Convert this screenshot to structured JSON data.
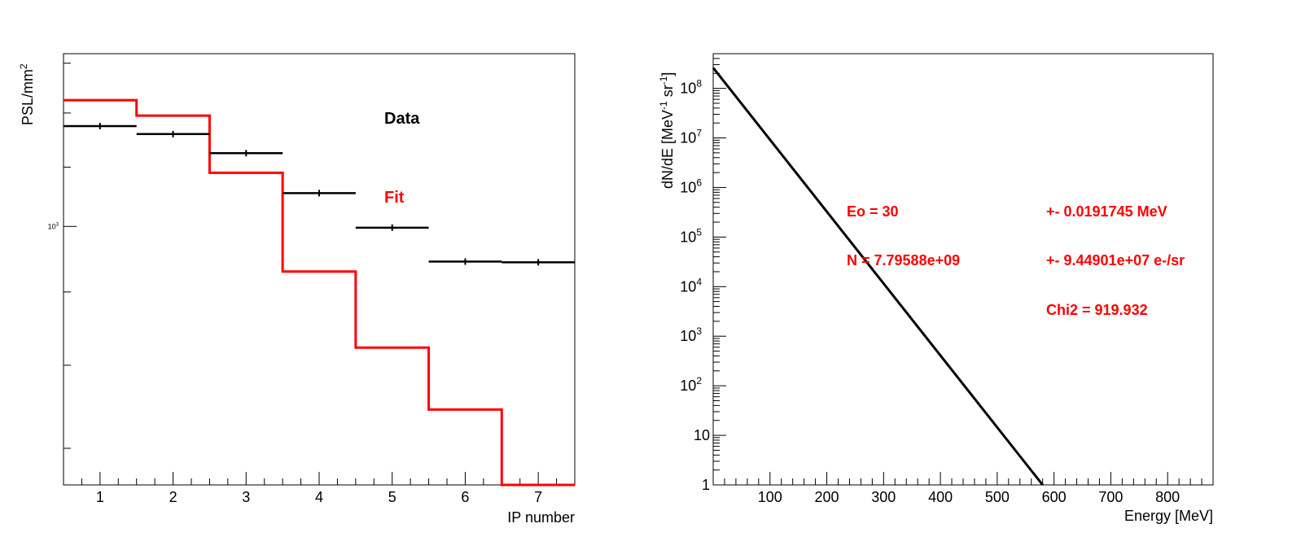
{
  "chart_data": [
    {
      "type": "step",
      "ylabel_base": "PSL/mm",
      "ylabel_sup": "2",
      "xlabel": "IP number",
      "x_ticks": [
        1,
        2,
        3,
        4,
        5,
        6,
        7
      ],
      "xlim": [
        0.5,
        7.5
      ],
      "y_scale": "log",
      "ylim": [
        660,
        1320
      ],
      "y_tick_label": "10",
      "y_tick_label_sup": "3",
      "y_tick_value": 1000,
      "y_minor_ticks": [
        700,
        800,
        900,
        1000,
        1100,
        1200,
        1300
      ],
      "legend": [
        {
          "label": "Data",
          "color": "#000000"
        },
        {
          "label": "Fit",
          "color": "#ff0000"
        }
      ],
      "series": [
        {
          "name": "Data",
          "color": "#000000",
          "x": [
            1,
            2,
            3,
            4,
            5,
            6,
            7
          ],
          "y": [
            1175,
            1160,
            1125,
            1055,
            998,
            945,
            944
          ]
        },
        {
          "name": "Fit",
          "color": "#ff0000",
          "x": [
            1,
            2,
            3,
            4,
            5,
            6,
            7
          ],
          "y": [
            1225,
            1195,
            1090,
            930,
            823,
            745,
            660
          ]
        }
      ]
    },
    {
      "type": "line",
      "ylabel": "dN/dE [MeV",
      "ylabel_sup1": "-1",
      "ylabel_mid": " sr",
      "ylabel_sup2": "-1",
      "ylabel_end": "]",
      "xlabel": "Energy [MeV]",
      "xlim": [
        0,
        880
      ],
      "x_ticks": [
        100,
        200,
        300,
        400,
        500,
        600,
        700,
        800
      ],
      "y_scale": "log",
      "ylim": [
        1,
        500000000
      ],
      "y_ticks": [
        {
          "base": "1",
          "exp": "",
          "value": 1
        },
        {
          "base": "10",
          "exp": "",
          "value": 10
        },
        {
          "base": "10",
          "exp": "2",
          "value": 100
        },
        {
          "base": "10",
          "exp": "3",
          "value": 1000
        },
        {
          "base": "10",
          "exp": "4",
          "value": 10000
        },
        {
          "base": "10",
          "exp": "5",
          "value": 100000
        },
        {
          "base": "10",
          "exp": "6",
          "value": 1000000
        },
        {
          "base": "10",
          "exp": "7",
          "value": 10000000
        },
        {
          "base": "10",
          "exp": "8",
          "value": 100000000
        }
      ],
      "series": [
        {
          "color": "#000000",
          "x": [
            0,
            580
          ],
          "y": [
            260000000,
            1
          ]
        }
      ],
      "annotations": [
        {
          "id": "eo",
          "text": "Eo =  30"
        },
        {
          "id": "eo-err",
          "text": "+-  0.0191745 MeV"
        },
        {
          "id": "n",
          "text": "N =  7.79588e+09"
        },
        {
          "id": "n-err",
          "text": "+-  9.44901e+07 e-/sr"
        },
        {
          "id": "chi2",
          "text": "Chi2 =  919.932"
        }
      ],
      "annotation_color": "#ff0000"
    }
  ]
}
